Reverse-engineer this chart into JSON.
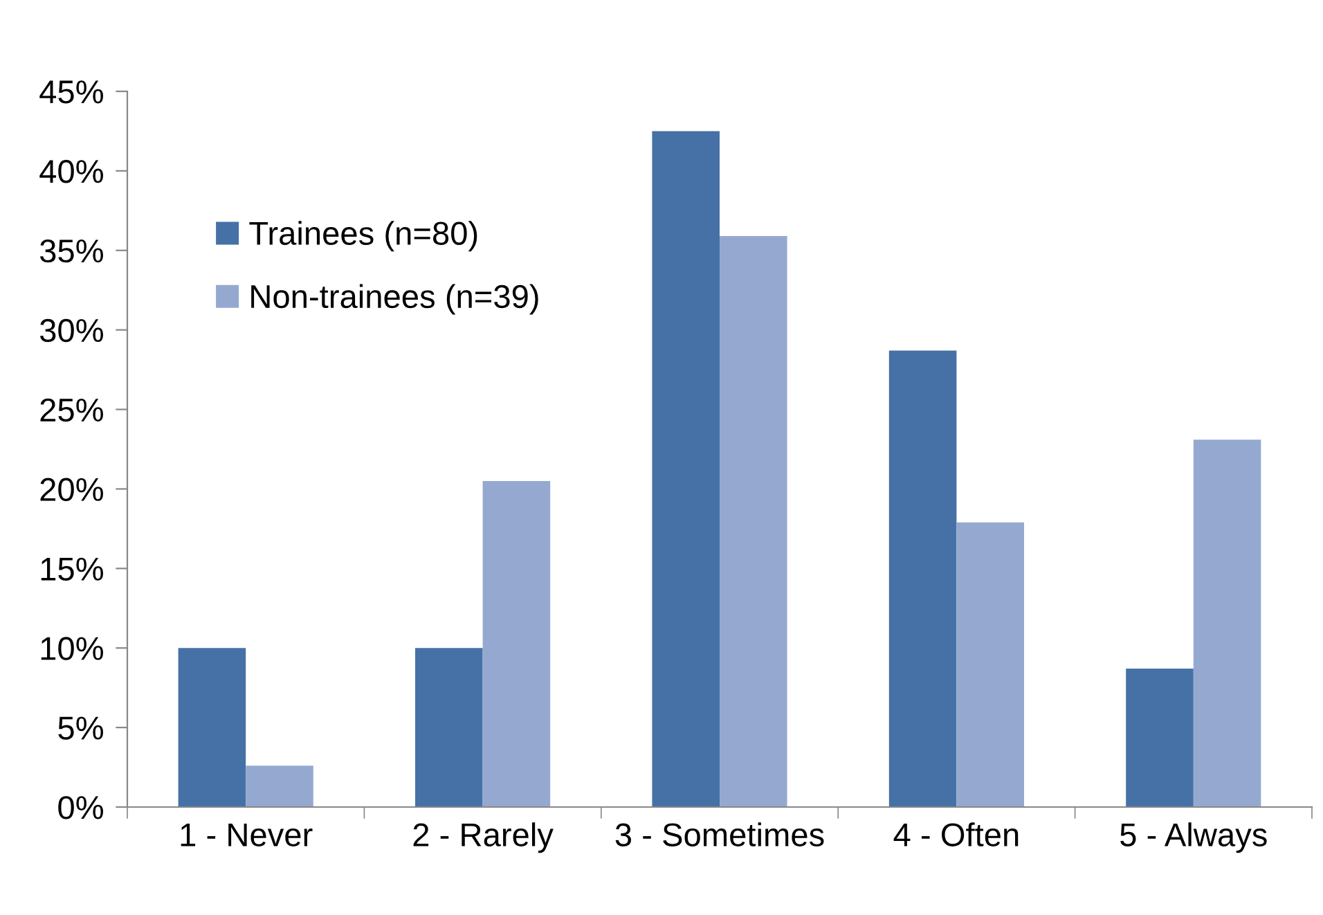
{
  "chart_data": {
    "type": "bar",
    "categories": [
      "1 - Never",
      "2 - Rarely",
      "3 - Sometimes",
      "4 - Often",
      "5 - Always"
    ],
    "series": [
      {
        "name": "Trainees (n=80)",
        "color": "#4571a6",
        "values": [
          10,
          10,
          42.5,
          28.7,
          8.7
        ]
      },
      {
        "name": "Non-trainees (n=39)",
        "color": "#95a9d0",
        "values": [
          2.6,
          20.5,
          35.9,
          17.9,
          23.1
        ]
      }
    ],
    "ylim": [
      0,
      45
    ],
    "yticks": [
      {
        "value": 0,
        "label": "0%"
      },
      {
        "value": 5,
        "label": "5%"
      },
      {
        "value": 10,
        "label": "10%"
      },
      {
        "value": 15,
        "label": "15%"
      },
      {
        "value": 20,
        "label": "20%"
      },
      {
        "value": 25,
        "label": "25%"
      },
      {
        "value": 30,
        "label": "30%"
      },
      {
        "value": 35,
        "label": "35%"
      },
      {
        "value": 40,
        "label": "40%"
      },
      {
        "value": 45,
        "label": "45%"
      }
    ],
    "grid": false,
    "legend": "top left"
  }
}
